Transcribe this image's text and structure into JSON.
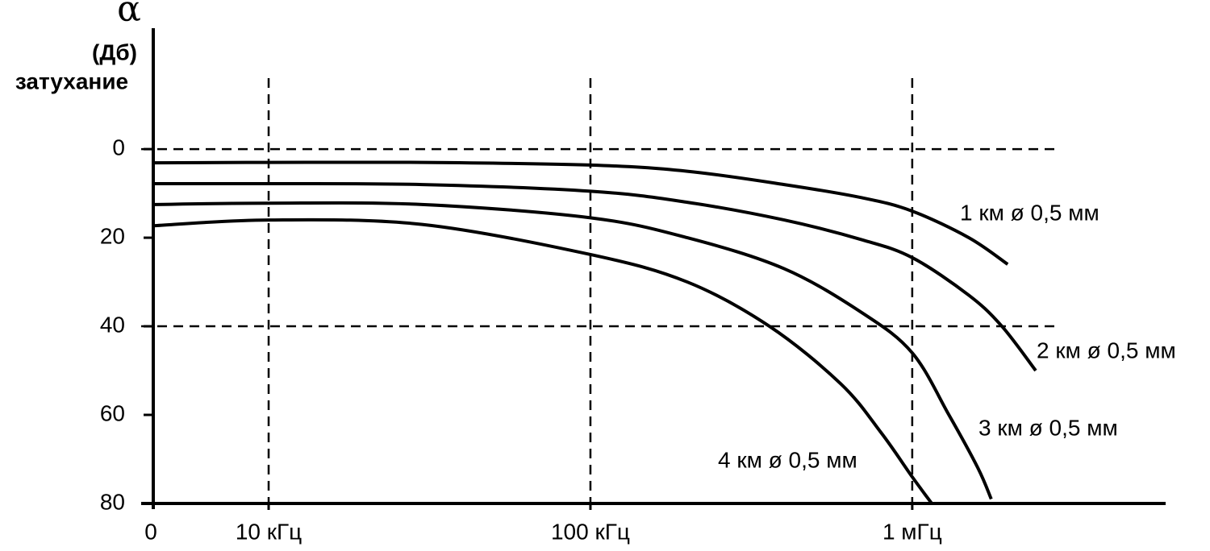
{
  "chart_data": {
    "type": "line",
    "y_symbol": "α",
    "y_unit": "(Дб)",
    "y_label": "затухание",
    "origin_label": "0",
    "x_scale": "log",
    "xlim": [
      4.38,
      6130
    ],
    "xticks": [
      {
        "value": 10,
        "label": "10 кГц"
      },
      {
        "value": 100,
        "label": "100 кГц"
      },
      {
        "value": 1000,
        "label": "1 мГц"
      }
    ],
    "ylim": [
      80,
      -27.3
    ],
    "yticks": [
      0,
      20,
      40,
      60,
      80
    ],
    "grid_x": [
      10,
      100,
      1000
    ],
    "grid_y": [
      0,
      40
    ],
    "color": "#000000",
    "series": [
      {
        "name": "1 км ø 0,5 мм",
        "x": [
          4.4,
          10,
          30,
          100,
          200,
          400,
          700,
          1000,
          1500,
          1980
        ],
        "values": [
          3.1,
          3,
          3,
          3.6,
          5,
          8,
          11,
          14,
          20,
          26
        ]
      },
      {
        "name": "2 км ø 0,5 мм",
        "x": [
          4.4,
          10,
          30,
          100,
          200,
          400,
          700,
          1000,
          1500,
          1900,
          2420
        ],
        "values": [
          7.8,
          7.8,
          8,
          9.5,
          12,
          16,
          20.5,
          24.5,
          33,
          40,
          50
        ]
      },
      {
        "name": "3 км ø 0,5 мм",
        "x": [
          4.4,
          10,
          30,
          100,
          200,
          400,
          700,
          1000,
          1300,
          1600,
          1760
        ],
        "values": [
          12.5,
          12.2,
          12.5,
          15.5,
          20,
          27,
          37,
          46,
          60,
          72,
          79
        ]
      },
      {
        "name": "4 км ø 0,5 мм",
        "x": [
          4.4,
          10,
          30,
          100,
          200,
          360,
          600,
          800,
          1000,
          1150
        ],
        "values": [
          17.3,
          16,
          17,
          23.8,
          30,
          40,
          53,
          64,
          74,
          80
        ]
      }
    ]
  }
}
